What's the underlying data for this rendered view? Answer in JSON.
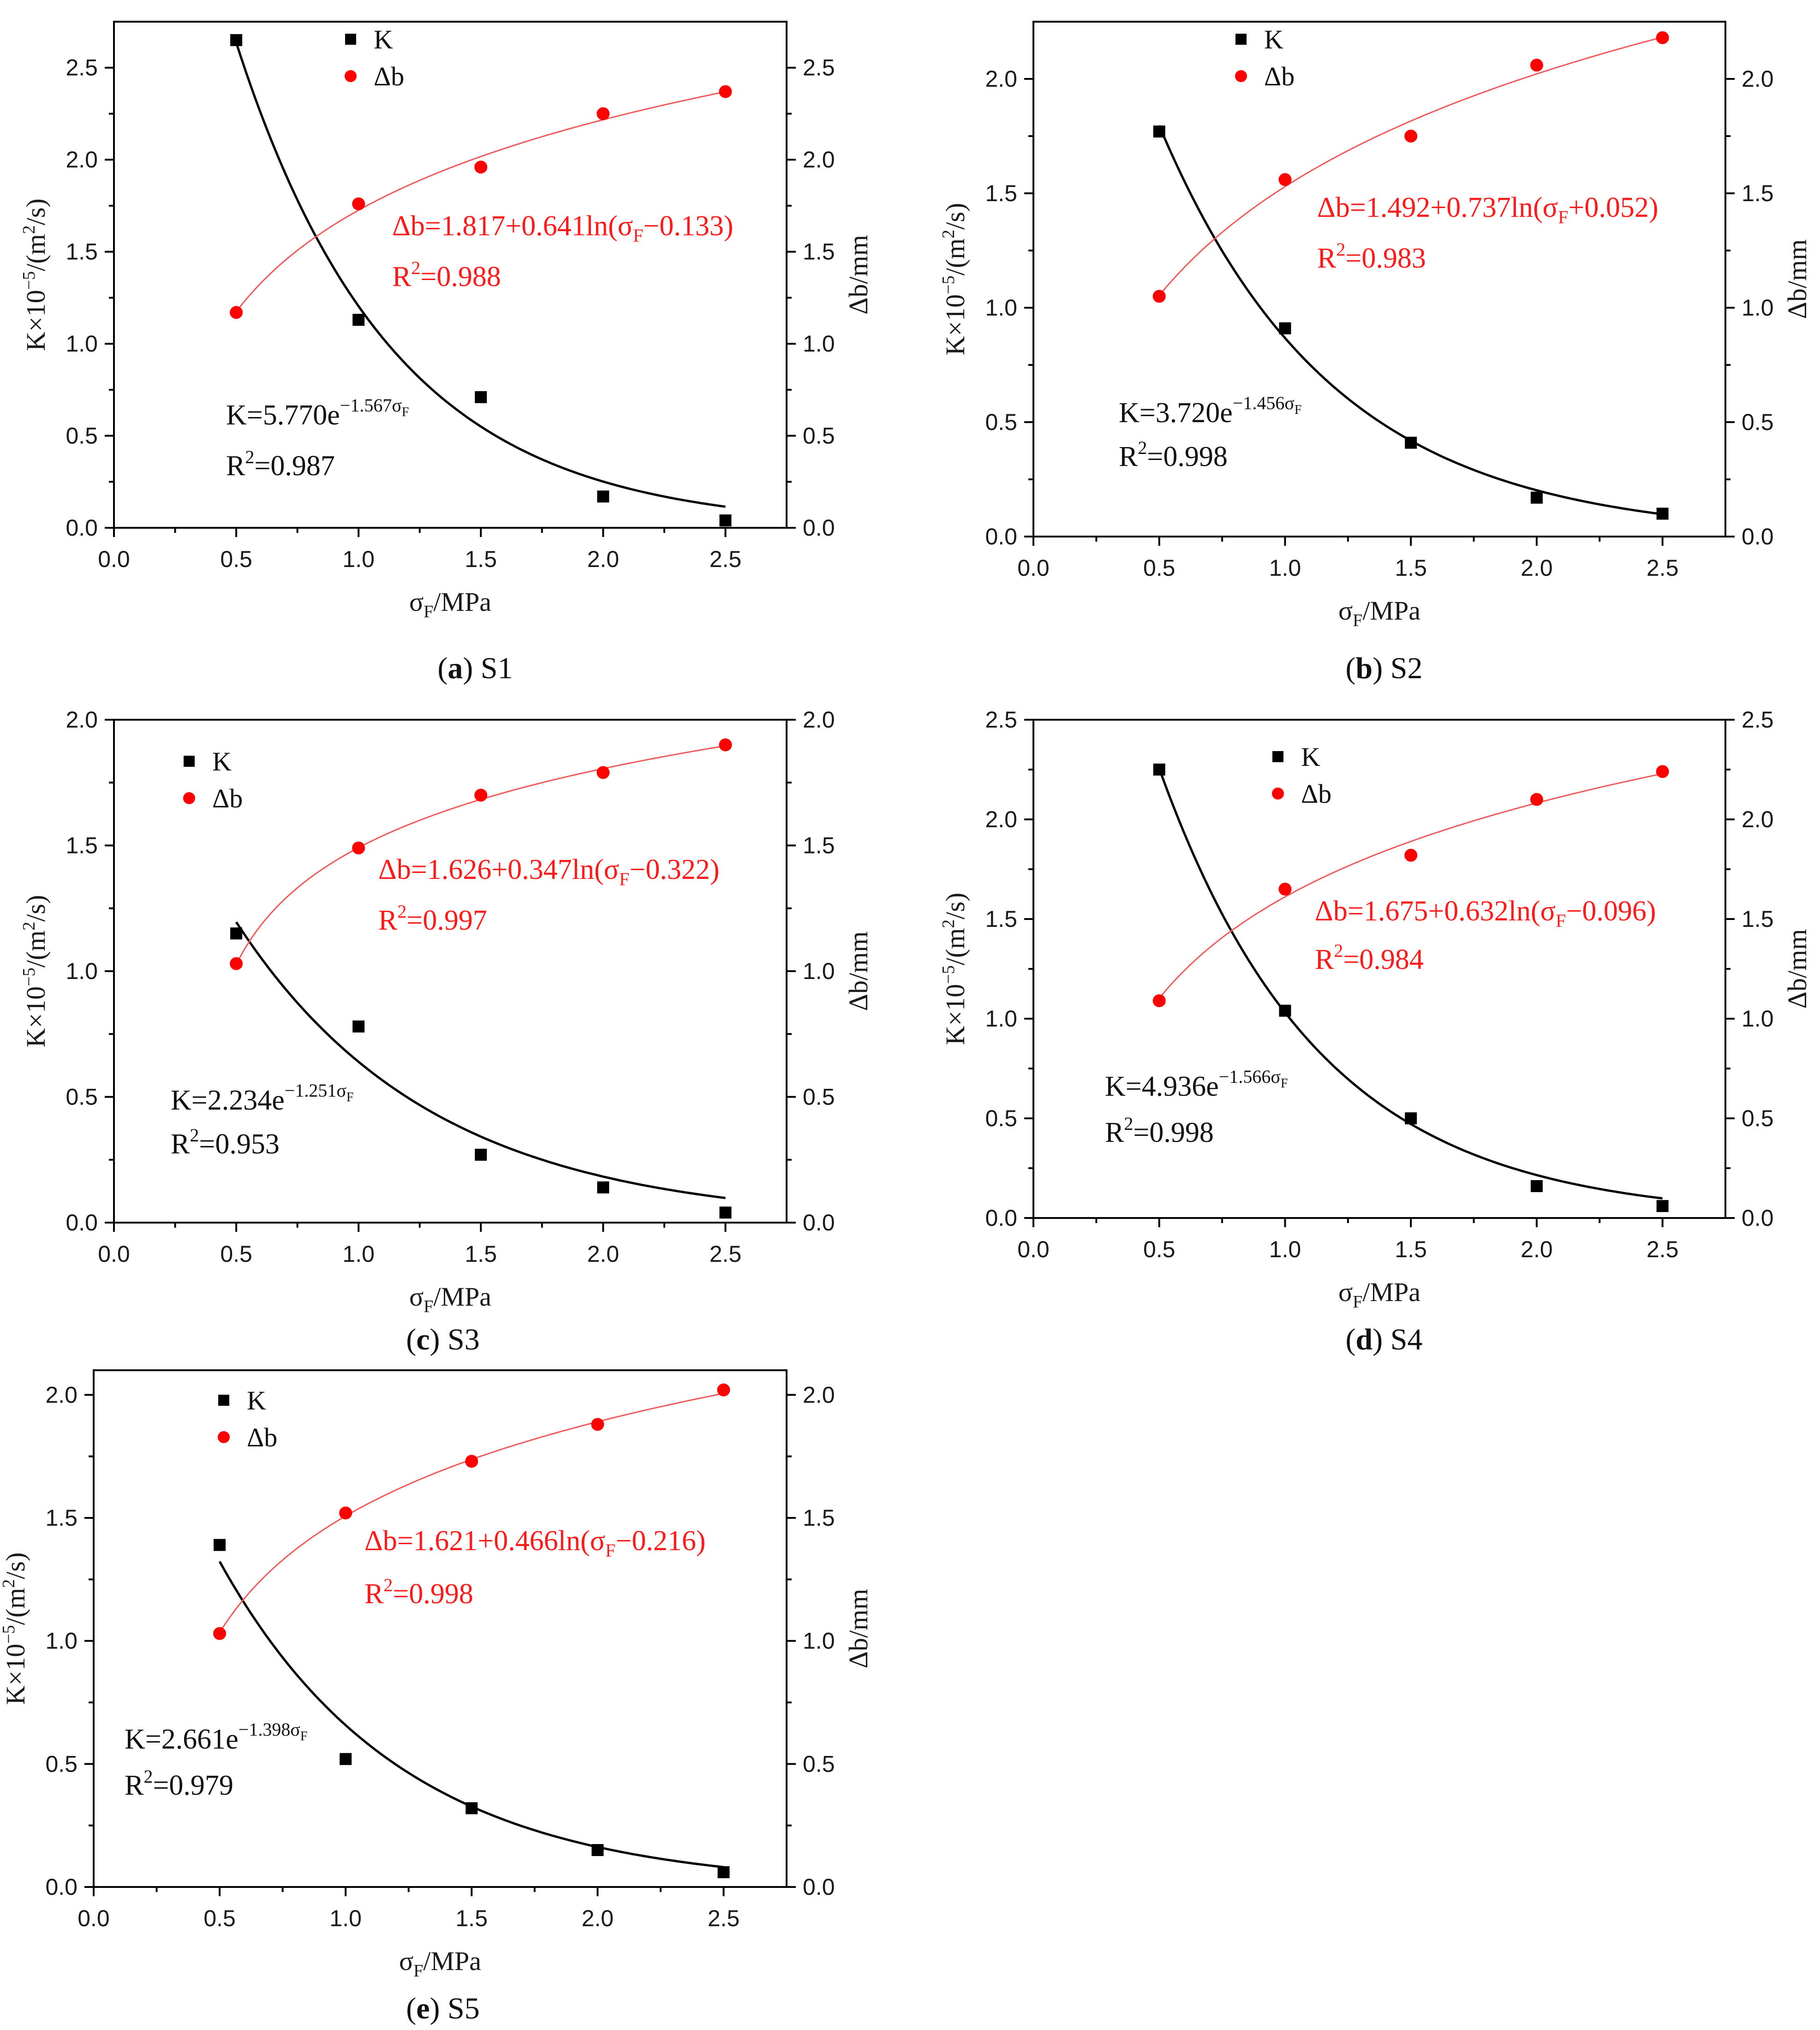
{
  "figure": {
    "legend_k": "K",
    "legend_db": "Δb",
    "x_label": "σ",
    "x_label_sub": "F",
    "x_label_unit": "/MPa",
    "yleft_label": "K×10",
    "yleft_label_sup": "−5",
    "yleft_label_unit": "/(m",
    "yleft_label_sup2": "2",
    "yleft_label_tail": "/s)",
    "yright_label": "Δb/mm"
  },
  "chart_data": [
    {
      "type": "scatter",
      "caption_letter": "a",
      "caption_name": "S1",
      "x": [
        0.5,
        1.0,
        1.5,
        2.0,
        2.5
      ],
      "x_ticks": [
        "0.0",
        "0.5",
        "1.0",
        "1.5",
        "2.0",
        "2.5"
      ],
      "xlim": [
        0,
        2.75
      ],
      "ylim": [
        0,
        2.75
      ],
      "y_ticks": [
        "0.0",
        "0.5",
        "1.0",
        "1.5",
        "2.0",
        "2.5"
      ],
      "y2_ticks": [
        "0.0",
        "0.5",
        "1.0",
        "1.5",
        "2.0",
        "2.5"
      ],
      "series": [
        {
          "name": "K",
          "axis": "left",
          "values": [
            2.65,
            1.13,
            0.71,
            0.17,
            0.04
          ]
        },
        {
          "name": "Δb",
          "axis": "right",
          "values": [
            1.17,
            1.76,
            1.96,
            2.25,
            2.37
          ]
        }
      ],
      "fit_k": {
        "a": 5.77,
        "b": 1.567,
        "eq_main": "K=5.770e",
        "eq_exp": "−1.567σ",
        "eq_exp_sub": "F",
        "r2": "=0.987"
      },
      "fit_db": {
        "a": 1.817,
        "b": 0.641,
        "c": -0.133,
        "eq_pre": "Δb=1.817+0.641ln(σ",
        "eq_sub": "F",
        "eq_post": "−0.133)",
        "r2": "=0.988"
      }
    },
    {
      "type": "scatter",
      "caption_letter": "b",
      "caption_name": "S2",
      "x": [
        0.5,
        1.0,
        1.5,
        2.0,
        2.5
      ],
      "x_ticks": [
        "0.0",
        "0.5",
        "1.0",
        "1.5",
        "2.0",
        "2.5"
      ],
      "xlim": [
        0,
        2.75
      ],
      "ylim": [
        0,
        2.25
      ],
      "y_ticks": [
        "0.0",
        "0.5",
        "1.0",
        "1.5",
        "2.0"
      ],
      "y2_ticks": [
        "0.0",
        "0.5",
        "1.0",
        "1.5",
        "2.0"
      ],
      "series": [
        {
          "name": "K",
          "axis": "left",
          "values": [
            1.77,
            0.91,
            0.41,
            0.17,
            0.1
          ]
        },
        {
          "name": "Δb",
          "axis": "right",
          "values": [
            1.05,
            1.56,
            1.75,
            2.06,
            2.18
          ]
        }
      ],
      "fit_k": {
        "a": 3.72,
        "b": 1.456,
        "eq_main": "K=3.720e",
        "eq_exp": "−1.456σ",
        "eq_exp_sub": "F",
        "r2": "=0.998"
      },
      "fit_db": {
        "a": 1.492,
        "b": 0.737,
        "c": 0.052,
        "eq_pre": "Δb=1.492+0.737ln(σ",
        "eq_sub": "F",
        "eq_post": "+0.052)",
        "r2": "=0.983"
      }
    },
    {
      "type": "scatter",
      "caption_letter": "c",
      "caption_name": "S3",
      "x": [
        0.5,
        1.0,
        1.5,
        2.0,
        2.5
      ],
      "x_ticks": [
        "0.0",
        "0.5",
        "1.0",
        "1.5",
        "2.0",
        "2.5"
      ],
      "xlim": [
        0,
        2.75
      ],
      "ylim": [
        0,
        2.0
      ],
      "y_ticks": [
        "0.0",
        "0.5",
        "1.0",
        "1.5",
        "2.0"
      ],
      "y2_ticks": [
        "0.0",
        "0.5",
        "1.0",
        "1.5",
        "2.0"
      ],
      "series": [
        {
          "name": "K",
          "axis": "left",
          "values": [
            1.15,
            0.78,
            0.27,
            0.14,
            0.04
          ]
        },
        {
          "name": "Δb",
          "axis": "right",
          "values": [
            1.03,
            1.49,
            1.7,
            1.79,
            1.9
          ]
        }
      ],
      "fit_k": {
        "a": 2.234,
        "b": 1.251,
        "eq_main": "K=2.234e",
        "eq_exp": "−1.251σ",
        "eq_exp_sub": "F",
        "r2": "=0.953"
      },
      "fit_db": {
        "a": 1.626,
        "b": 0.347,
        "c": -0.322,
        "eq_pre": "Δb=1.626+0.347ln(σ",
        "eq_sub": "F",
        "eq_post": "−0.322)",
        "r2": "=0.997"
      }
    },
    {
      "type": "scatter",
      "caption_letter": "d",
      "caption_name": "S4",
      "x": [
        0.5,
        1.0,
        1.5,
        2.0,
        2.5
      ],
      "x_ticks": [
        "0.0",
        "0.5",
        "1.0",
        "1.5",
        "2.0",
        "2.5"
      ],
      "xlim": [
        0,
        2.75
      ],
      "ylim": [
        0,
        2.5
      ],
      "y_ticks": [
        "0.0",
        "0.5",
        "1.0",
        "1.5",
        "2.0",
        "2.5"
      ],
      "y2_ticks": [
        "0.0",
        "0.5",
        "1.0",
        "1.5",
        "2.0",
        "2.5"
      ],
      "series": [
        {
          "name": "K",
          "axis": "left",
          "values": [
            2.25,
            1.04,
            0.5,
            0.16,
            0.06
          ]
        },
        {
          "name": "Δb",
          "axis": "right",
          "values": [
            1.09,
            1.65,
            1.82,
            2.1,
            2.24
          ]
        }
      ],
      "fit_k": {
        "a": 4.936,
        "b": 1.566,
        "eq_main": "K=4.936e",
        "eq_exp": "−1.566σ",
        "eq_exp_sub": "F",
        "r2": "=0.998"
      },
      "fit_db": {
        "a": 1.675,
        "b": 0.632,
        "c": -0.096,
        "eq_pre": "Δb=1.675+0.632ln(σ",
        "eq_sub": "F",
        "eq_post": "−0.096)",
        "r2": "=0.984"
      }
    },
    {
      "type": "scatter",
      "caption_letter": "e",
      "caption_name": "S5",
      "x": [
        0.5,
        1.0,
        1.5,
        2.0,
        2.5
      ],
      "x_ticks": [
        "0.0",
        "0.5",
        "1.0",
        "1.5",
        "2.0",
        "2.5"
      ],
      "xlim": [
        0,
        2.75
      ],
      "ylim": [
        0,
        2.1
      ],
      "y_ticks": [
        "0.0",
        "0.5",
        "1.0",
        "1.5",
        "2.0"
      ],
      "y2_ticks": [
        "0.0",
        "0.5",
        "1.0",
        "1.5",
        "2.0"
      ],
      "series": [
        {
          "name": "K",
          "axis": "left",
          "values": [
            1.39,
            0.52,
            0.32,
            0.15,
            0.06
          ]
        },
        {
          "name": "Δb",
          "axis": "right",
          "values": [
            1.03,
            1.52,
            1.73,
            1.88,
            2.02
          ]
        }
      ],
      "fit_k": {
        "a": 2.661,
        "b": 1.398,
        "eq_main": "K=2.661e",
        "eq_exp": "−1.398σ",
        "eq_exp_sub": "F",
        "r2": "=0.979"
      },
      "fit_db": {
        "a": 1.621,
        "b": 0.466,
        "c": -0.216,
        "eq_pre": "Δb=1.621+0.466ln(σ",
        "eq_sub": "F",
        "eq_post": "−0.216)",
        "r2": "=0.998"
      }
    }
  ]
}
